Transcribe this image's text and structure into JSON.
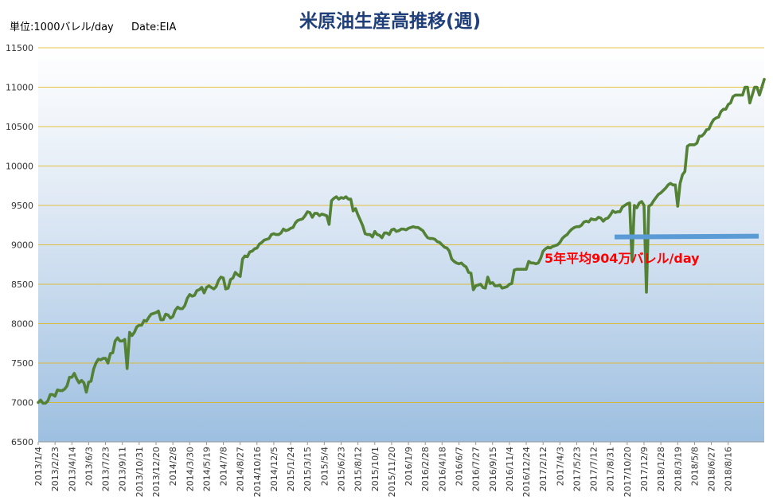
{
  "chart_data": {
    "type": "line",
    "title": "米原油生産高推移(週)",
    "unit_note": "単位:1000バレル/day",
    "source_note": "Date:EIA",
    "xlabel": "",
    "ylabel": "",
    "ylim": [
      6500,
      11500
    ],
    "yticks": [
      6500,
      7000,
      7500,
      8000,
      8500,
      9000,
      9500,
      10000,
      10500,
      11000,
      11500
    ],
    "grid": true,
    "x_tick_labels": [
      "2013/1/4",
      "2013/2/23",
      "2013/4/14",
      "2013/6/3",
      "2013/7/23",
      "2013/9/11",
      "2013/10/31",
      "2013/12/20",
      "2014/2/8",
      "2014/3/30",
      "2014/5/19",
      "2014/7/8",
      "2014/8/27",
      "2014/10/16",
      "2014/12/5",
      "2015/1/24",
      "2015/3/15",
      "2015/5/4",
      "2015/6/23",
      "2015/8/12",
      "2015/10/1",
      "2015/11/20",
      "2016/1/9",
      "2016/2/28",
      "2016/4/18",
      "2016/6/7",
      "2016/7/27",
      "2016/9/15",
      "2016/11/4",
      "2016/12/24",
      "2017/2/12",
      "2017/4/3",
      "2017/5/23",
      "2017/7/12",
      "2017/8/31",
      "2017/10/20",
      "2017/12/9",
      "2018/1/28",
      "2018/3/19",
      "2018/5/8",
      "2018/6/27",
      "2018/8/16"
    ],
    "series": [
      {
        "color": "#538135",
        "values": [
          7000,
          7030,
          6990,
          6990,
          7020,
          7100,
          7100,
          7080,
          7160,
          7150,
          7150,
          7170,
          7210,
          7320,
          7320,
          7370,
          7300,
          7250,
          7280,
          7250,
          7130,
          7260,
          7270,
          7420,
          7500,
          7550,
          7540,
          7560,
          7560,
          7500,
          7620,
          7630,
          7780,
          7820,
          7780,
          7780,
          7800,
          7430,
          7890,
          7850,
          7890,
          7960,
          7980,
          7980,
          8040,
          8030,
          8080,
          8120,
          8130,
          8140,
          8160,
          8050,
          8050,
          8120,
          8110,
          8070,
          8090,
          8170,
          8210,
          8190,
          8190,
          8230,
          8320,
          8370,
          8350,
          8360,
          8420,
          8430,
          8460,
          8390,
          8460,
          8480,
          8460,
          8440,
          8470,
          8550,
          8590,
          8580,
          8440,
          8450,
          8560,
          8580,
          8650,
          8620,
          8600,
          8820,
          8860,
          8850,
          8910,
          8920,
          8950,
          8960,
          9010,
          9030,
          9060,
          9070,
          9080,
          9130,
          9140,
          9130,
          9130,
          9150,
          9200,
          9180,
          9190,
          9210,
          9220,
          9280,
          9310,
          9320,
          9330,
          9370,
          9420,
          9410,
          9350,
          9400,
          9400,
          9370,
          9390,
          9380,
          9370,
          9260,
          9560,
          9590,
          9610,
          9580,
          9600,
          9590,
          9610,
          9580,
          9580,
          9430,
          9460,
          9380,
          9310,
          9240,
          9140,
          9130,
          9130,
          9100,
          9170,
          9130,
          9120,
          9090,
          9150,
          9150,
          9130,
          9190,
          9200,
          9170,
          9180,
          9200,
          9200,
          9190,
          9210,
          9220,
          9230,
          9220,
          9220,
          9200,
          9180,
          9130,
          9090,
          9080,
          9080,
          9070,
          9040,
          9030,
          9000,
          8970,
          8960,
          8920,
          8820,
          8790,
          8770,
          8760,
          8770,
          8740,
          8720,
          8650,
          8640,
          8430,
          8480,
          8490,
          8500,
          8460,
          8450,
          8590,
          8510,
          8520,
          8480,
          8480,
          8490,
          8450,
          8460,
          8470,
          8500,
          8510,
          8680,
          8690,
          8690,
          8690,
          8690,
          8690,
          8790,
          8770,
          8770,
          8760,
          8770,
          8830,
          8920,
          8950,
          8970,
          8960,
          8980,
          8990,
          9000,
          9030,
          9080,
          9110,
          9130,
          9170,
          9200,
          9220,
          9230,
          9230,
          9250,
          9290,
          9300,
          9290,
          9330,
          9320,
          9320,
          9350,
          9340,
          9300,
          9330,
          9340,
          9380,
          9430,
          9410,
          9420,
          9420,
          9480,
          9500,
          9520,
          9530,
          8800,
          9500,
          9470,
          9530,
          9550,
          9500,
          8400,
          9490,
          9510,
          9560,
          9600,
          9640,
          9660,
          9690,
          9720,
          9760,
          9780,
          9760,
          9760,
          9490,
          9780,
          9890,
          9930,
          10250,
          10270,
          10270,
          10270,
          10290,
          10380,
          10380,
          10410,
          10460,
          10470,
          10540,
          10590,
          10610,
          10620,
          10690,
          10720,
          10720,
          10780,
          10800,
          10880,
          10900,
          10900,
          10900,
          10900,
          11000,
          11000,
          10800,
          10900,
          11000,
          11000,
          10900,
          11000,
          11100
        ]
      }
    ],
    "annotations": [
      {
        "text": "5年平均904万バレル/day",
        "color": "#ff0000"
      }
    ],
    "reference_lines": [
      {
        "value": 9100,
        "value_end": 9110,
        "color": "#5b9bd5"
      }
    ]
  }
}
